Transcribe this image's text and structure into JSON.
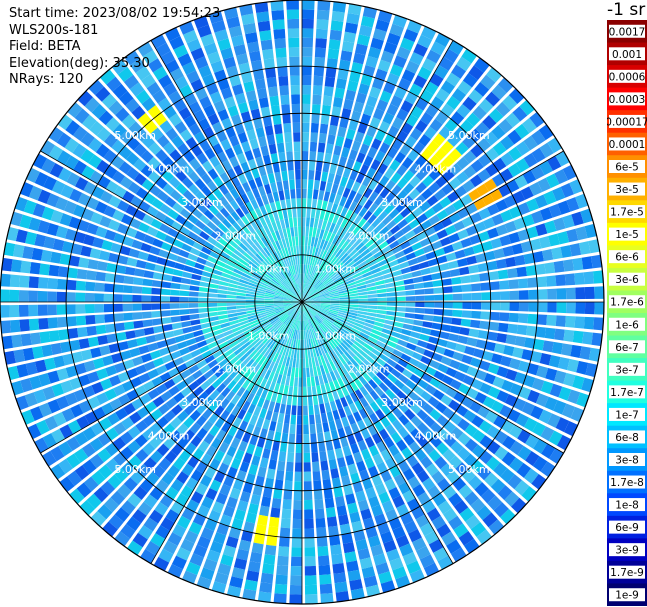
{
  "info": {
    "start_time": "Start time: 2023/08/02 19:54:23",
    "instrument": "WLS200s-181",
    "field": "Field: BETA",
    "elevation": "Elevation(deg): 35.30",
    "nrays": "NRays: 120"
  },
  "colorbar": {
    "units": "-1 sr",
    "ticks": [
      "0.0017",
      "0.001",
      "0.0006",
      "0.0003",
      "0.00017",
      "0.0001",
      "6e-5",
      "3e-5",
      "1.7e-5",
      "1e-5",
      "6e-6",
      "3e-6",
      "1.7e-6",
      "1e-6",
      "6e-7",
      "3e-7",
      "1.7e-7",
      "1e-7",
      "6e-8",
      "3e-8",
      "1.7e-8",
      "1e-8",
      "6e-9",
      "3e-9",
      "1.7e-9",
      "1e-9"
    ],
    "colors": [
      "#8b0000",
      "#b00000",
      "#d80000",
      "#ff0000",
      "#ff3000",
      "#ff6000",
      "#ff9000",
      "#ffb000",
      "#ffd800",
      "#ffff00",
      "#e8ff20",
      "#c8ff40",
      "#a0ff60",
      "#80ff80",
      "#60ffa0",
      "#40ffc0",
      "#20ffe0",
      "#00e8ff",
      "#00c0ff",
      "#0098ff",
      "#0070ff",
      "#0048ff",
      "#0020e0",
      "#0000c0",
      "#000098",
      "#000070"
    ]
  },
  "chart_data": {
    "type": "heatmap",
    "projection": "polar PPI scan",
    "field": "BETA",
    "nrays": 120,
    "range_rings_km": [
      1.0,
      2.0,
      3.0,
      4.0,
      5.0
    ],
    "ring_labels": [
      "1.00km",
      "2.00km",
      "3.00km",
      "4.00km",
      "5.00km"
    ],
    "max_range_km": 6.4,
    "azimuth_spokes_deg": [
      0,
      30,
      60,
      90,
      120,
      150,
      180,
      210,
      240,
      270,
      300,
      330
    ],
    "dominant_value_range": [
      "1.7e-8",
      "1e-7"
    ],
    "near_range_value": "1.7e-7",
    "hotspots": [
      {
        "azimuth_deg": 320,
        "range_km": 5.0,
        "value": "1e-5"
      },
      {
        "azimuth_deg": 42,
        "range_km": 4.3,
        "value": "1e-5"
      },
      {
        "azimuth_deg": 58,
        "range_km": 4.5,
        "value": "3e-5"
      },
      {
        "azimuth_deg": 188,
        "range_km": 4.9,
        "value": "1e-5"
      }
    ]
  }
}
